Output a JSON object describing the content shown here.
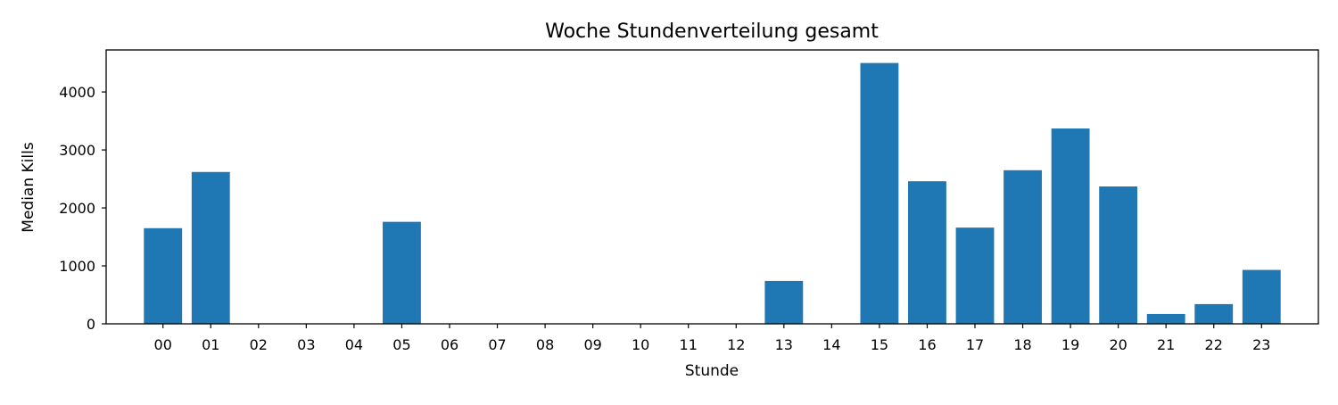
{
  "chart_data": {
    "type": "bar",
    "title": "Woche Stundenverteilung gesamt",
    "xlabel": "Stunde",
    "ylabel": "Median Kills",
    "categories": [
      "00",
      "01",
      "02",
      "03",
      "04",
      "05",
      "06",
      "07",
      "08",
      "09",
      "10",
      "11",
      "12",
      "13",
      "14",
      "15",
      "16",
      "17",
      "18",
      "19",
      "20",
      "21",
      "22",
      "23"
    ],
    "values": [
      1650,
      2620,
      0,
      0,
      0,
      1760,
      0,
      0,
      0,
      0,
      0,
      0,
      0,
      740,
      0,
      4500,
      2460,
      1660,
      2650,
      3370,
      2370,
      170,
      340,
      930
    ],
    "ylim": [
      0,
      4725
    ],
    "yticks": [
      0,
      1000,
      2000,
      3000,
      4000
    ],
    "grid": false,
    "legend": "none",
    "bar_color": "#1f77b4"
  }
}
